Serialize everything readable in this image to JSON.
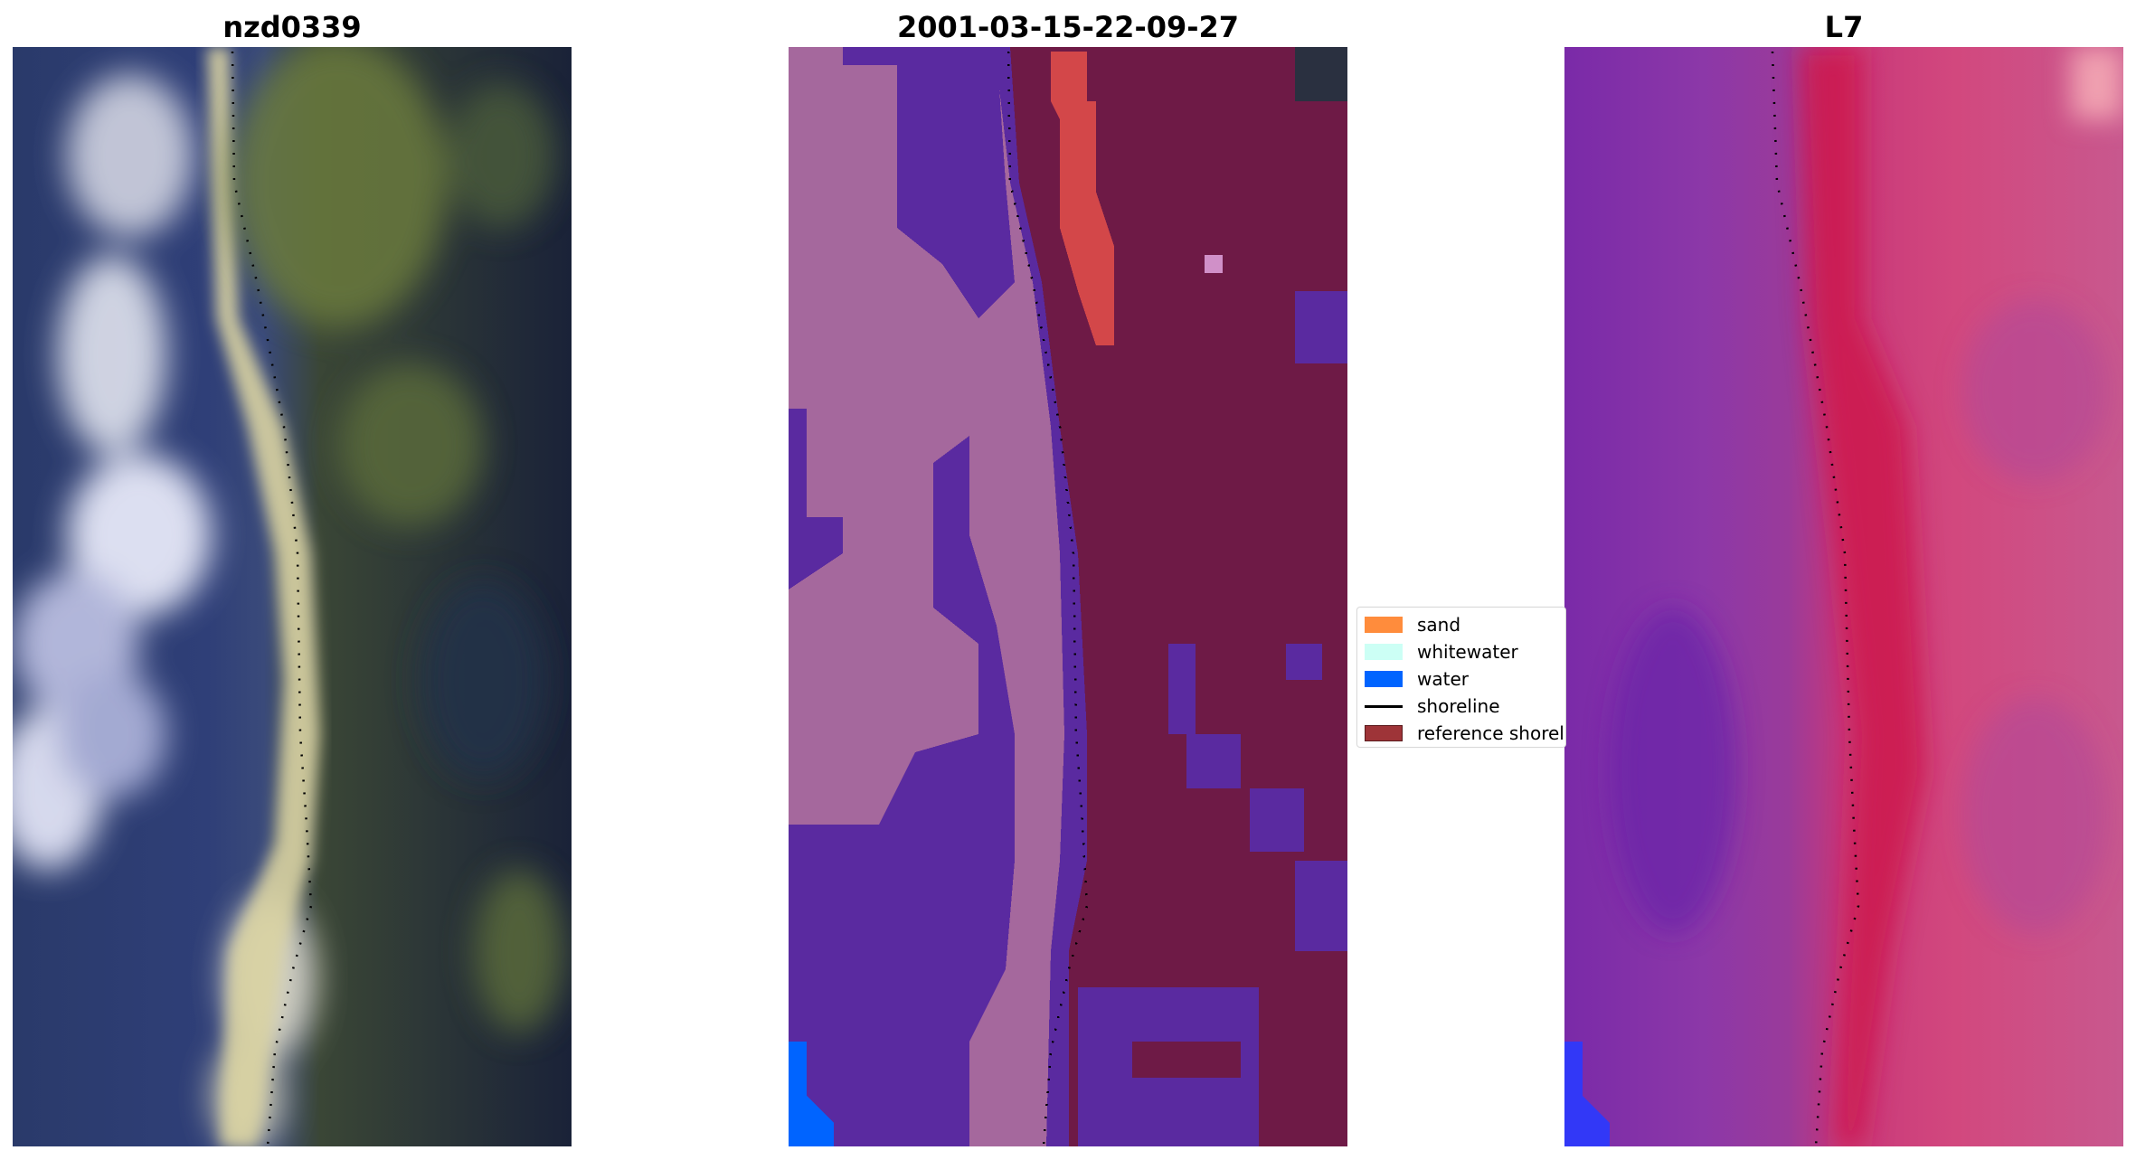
{
  "panels": [
    {
      "title": "nzd0339"
    },
    {
      "title": "2001-03-15-22-09-27"
    },
    {
      "title": "L7"
    }
  ],
  "legend": {
    "items": [
      {
        "label": "sand",
        "color": "#ff8c3c",
        "kind": "patch"
      },
      {
        "label": "whitewater",
        "color": "#ccfff5",
        "kind": "patch"
      },
      {
        "label": "water",
        "color": "#0064ff",
        "kind": "patch"
      },
      {
        "label": "shoreline",
        "color": "#000000",
        "kind": "line"
      },
      {
        "label": "reference shoreline",
        "color": "#9e3438",
        "kind": "patch"
      }
    ]
  },
  "colors": {
    "rgb_water_deep": "#1c2a4a",
    "rgb_surf": "#e6e8f5",
    "rgb_sand": "#e8e2a6",
    "rgb_vegetation": "#6a7a3c",
    "class_water": "#5a2aa0",
    "class_sand_overlay": "#a5689d",
    "class_land": "#6e1a46",
    "class_land_red": "#d84a4a",
    "class_water_blue": "#0064ff",
    "index_purple": "#8c38a8",
    "index_red": "#cc1a4e",
    "index_pink": "#d2487e",
    "index_blue": "#2a3aff"
  }
}
